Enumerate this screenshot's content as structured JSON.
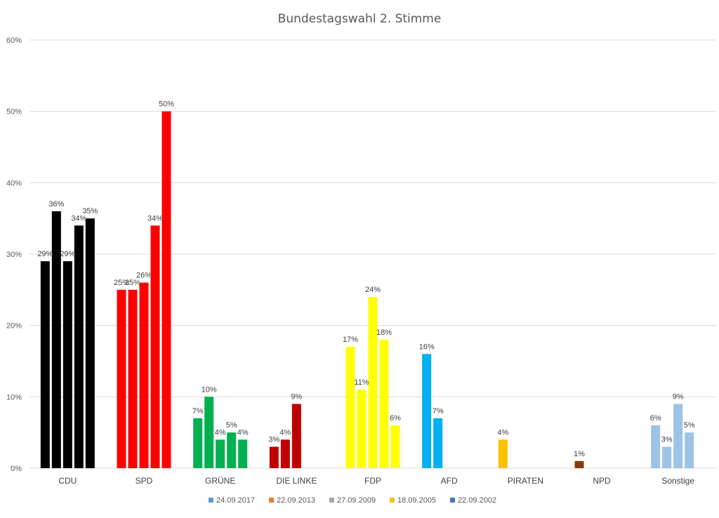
{
  "chart_data": {
    "type": "bar",
    "title": "Bundestagswahl 2. Stimme",
    "ylim": [
      0,
      60
    ],
    "yticks": [
      "0%",
      "10%",
      "20%",
      "30%",
      "40%",
      "50%",
      "60%"
    ],
    "grid": true,
    "legend_position": "bottom",
    "categories": [
      "CDU",
      "SPD",
      "GRÜNE",
      "DIE LINKE",
      "FDP",
      "AFD",
      "PIRATEN",
      "NPD",
      "Sonstige"
    ],
    "legend": [
      {
        "name": "24.09.2017",
        "color": "#5b9bd5"
      },
      {
        "name": "22.09.2013",
        "color": "#ed7d31"
      },
      {
        "name": "27.09.2009",
        "color": "#a5a5a5"
      },
      {
        "name": "18.09.2005",
        "color": "#ffc000"
      },
      {
        "name": "22.09.2002",
        "color": "#4472c4"
      }
    ],
    "groups": [
      {
        "category": "CDU",
        "color": "#000000",
        "values": [
          29,
          36,
          29,
          34,
          35
        ],
        "labels": [
          "29%",
          "36%",
          "29%",
          "34%",
          "35%"
        ]
      },
      {
        "category": "SPD",
        "color": "#ff0000",
        "values": [
          25,
          25,
          26,
          34,
          50
        ],
        "labels": [
          "25%",
          "25%",
          "26%",
          "34%",
          "50%"
        ]
      },
      {
        "category": "GRÜNE",
        "color": "#00b050",
        "values": [
          7,
          10,
          4,
          5,
          4
        ],
        "labels": [
          "7%",
          "10%",
          "4%",
          "5%",
          "4%"
        ]
      },
      {
        "category": "DIE LINKE",
        "color": "#c00000",
        "values": [
          3,
          4,
          9
        ],
        "labels": [
          "3%",
          "4%",
          "9%"
        ]
      },
      {
        "category": "FDP",
        "color": "#ffff00",
        "values": [
          17,
          11,
          24,
          18,
          6
        ],
        "labels": [
          "17%",
          "11%",
          "24%",
          "18%",
          "6%"
        ]
      },
      {
        "category": "AFD",
        "color": "#00b0f0",
        "values": [
          16,
          7
        ],
        "labels": [
          "16%",
          "7%"
        ]
      },
      {
        "category": "PIRATEN",
        "color": "#ffc000",
        "values": [
          4
        ],
        "labels": [
          "4%"
        ]
      },
      {
        "category": "NPD",
        "color": "#843c0c",
        "values": [
          1
        ],
        "labels": [
          "1%"
        ]
      },
      {
        "category": "Sonstige",
        "color": "#9dc3e6",
        "values": [
          6,
          3,
          9,
          5
        ],
        "labels": [
          "6%",
          "3%",
          "9%",
          "5%"
        ]
      }
    ]
  }
}
